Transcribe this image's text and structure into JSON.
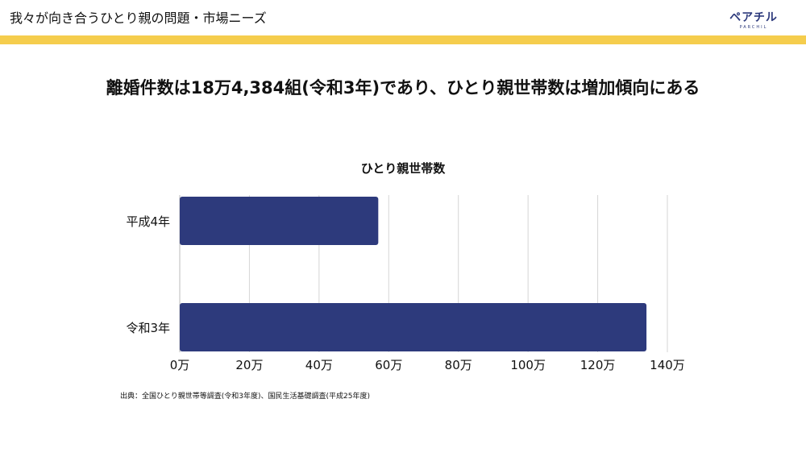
{
  "header": {
    "title": "我々が向き合うひとり親の問題・市場ニーズ",
    "logo_text": "ペアチル",
    "logo_sub": "PARCHIL",
    "accent_color": "#f5cd4d",
    "brand_color": "#2d3a7c"
  },
  "headline": "離婚件数は18万4,384組(令和3年)であり、ひとり親世帯数は増加傾向にある",
  "chart_data": {
    "type": "bar",
    "orientation": "horizontal",
    "title": "ひとり親世帯数",
    "categories": [
      "平成4年",
      "令和3年"
    ],
    "values": [
      57,
      134
    ],
    "unit": "万",
    "xlim": [
      0,
      140
    ],
    "ticks": [
      0,
      20,
      40,
      60,
      80,
      100,
      120,
      140
    ],
    "tick_labels": [
      "0万",
      "20万",
      "40万",
      "60万",
      "80万",
      "100万",
      "120万",
      "140万"
    ],
    "bar_color": "#2d3a7c",
    "grid": true
  },
  "source": "出典：全国ひとり親世帯等調査(令和3年度)、国民生活基礎調査(平成25年度)"
}
